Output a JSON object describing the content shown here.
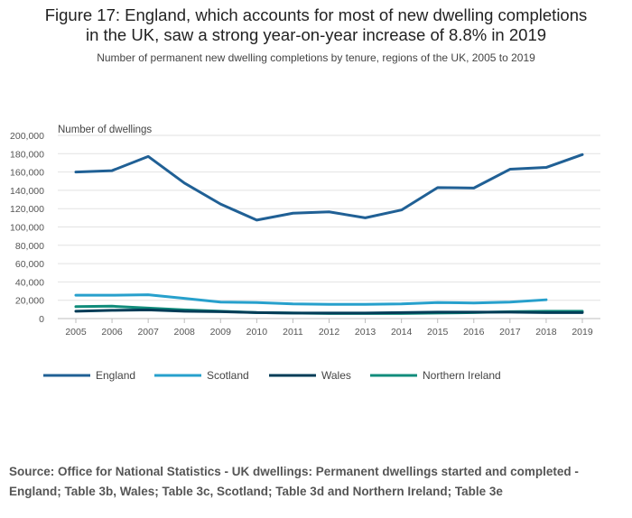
{
  "header": {
    "title_line1": "Figure 17: England, which accounts for most of new dwelling completions",
    "title_line2": "in the UK, saw a strong year-on-year increase of 8.8% in 2019",
    "subtitle": "Number of permanent new dwelling completions by tenure, regions of the UK, 2005 to 2019"
  },
  "footer": {
    "source": "Source: Office for National Statistics - UK dwellings:  Permanent dwellings started and completed - England; Table 3b, Wales; Table 3c, Scotland; Table 3d and Northern Ireland; Table 3e"
  },
  "chart_data": {
    "type": "line",
    "title": "Figure 17: England, which accounts for most of new dwelling completions in the UK, saw a strong year-on-year increase of 8.8% in 2019",
    "subtitle": "Number of permanent new dwelling completions by tenure, regions of the UK, 2005 to 2019",
    "ylabel": "Number of dwellings",
    "xlabel": "",
    "ylim": [
      0,
      200000
    ],
    "yticks": [
      0,
      20000,
      40000,
      60000,
      80000,
      100000,
      120000,
      140000,
      160000,
      180000,
      200000
    ],
    "ytick_labels": [
      "0",
      "20,000",
      "40,000",
      "60,000",
      "80,000",
      "100,000",
      "120,000",
      "140,000",
      "160,000",
      "180,000",
      "200,000"
    ],
    "x": [
      "2005",
      "2006",
      "2007",
      "2008",
      "2009",
      "2010",
      "2011",
      "2012",
      "2013",
      "2014",
      "2015",
      "2016",
      "2017",
      "2018",
      "2019"
    ],
    "grid": true,
    "legend_position": "bottom",
    "series": [
      {
        "name": "England",
        "color": "#206095",
        "values": [
          160000,
          161500,
          177000,
          148000,
          125000,
          107500,
          115000,
          116500,
          110000,
          118500,
          143000,
          142500,
          163000,
          165000,
          179000
        ]
      },
      {
        "name": "Scotland",
        "color": "#27a0cc",
        "values": [
          25500,
          25500,
          26000,
          22000,
          18000,
          17500,
          16000,
          15500,
          15500,
          16000,
          17500,
          17000,
          18000,
          20500,
          null
        ]
      },
      {
        "name": "Wales",
        "color": "#003c57",
        "values": [
          8000,
          9000,
          9500,
          8000,
          7500,
          6500,
          6000,
          6000,
          6000,
          6500,
          7000,
          7000,
          7000,
          6500,
          6500
        ]
      },
      {
        "name": "Northern Ireland",
        "color": "#118c7b",
        "values": [
          13000,
          13500,
          11500,
          9500,
          8000,
          6500,
          6000,
          5500,
          5500,
          5500,
          6000,
          6500,
          7500,
          8000,
          8000
        ]
      }
    ]
  }
}
